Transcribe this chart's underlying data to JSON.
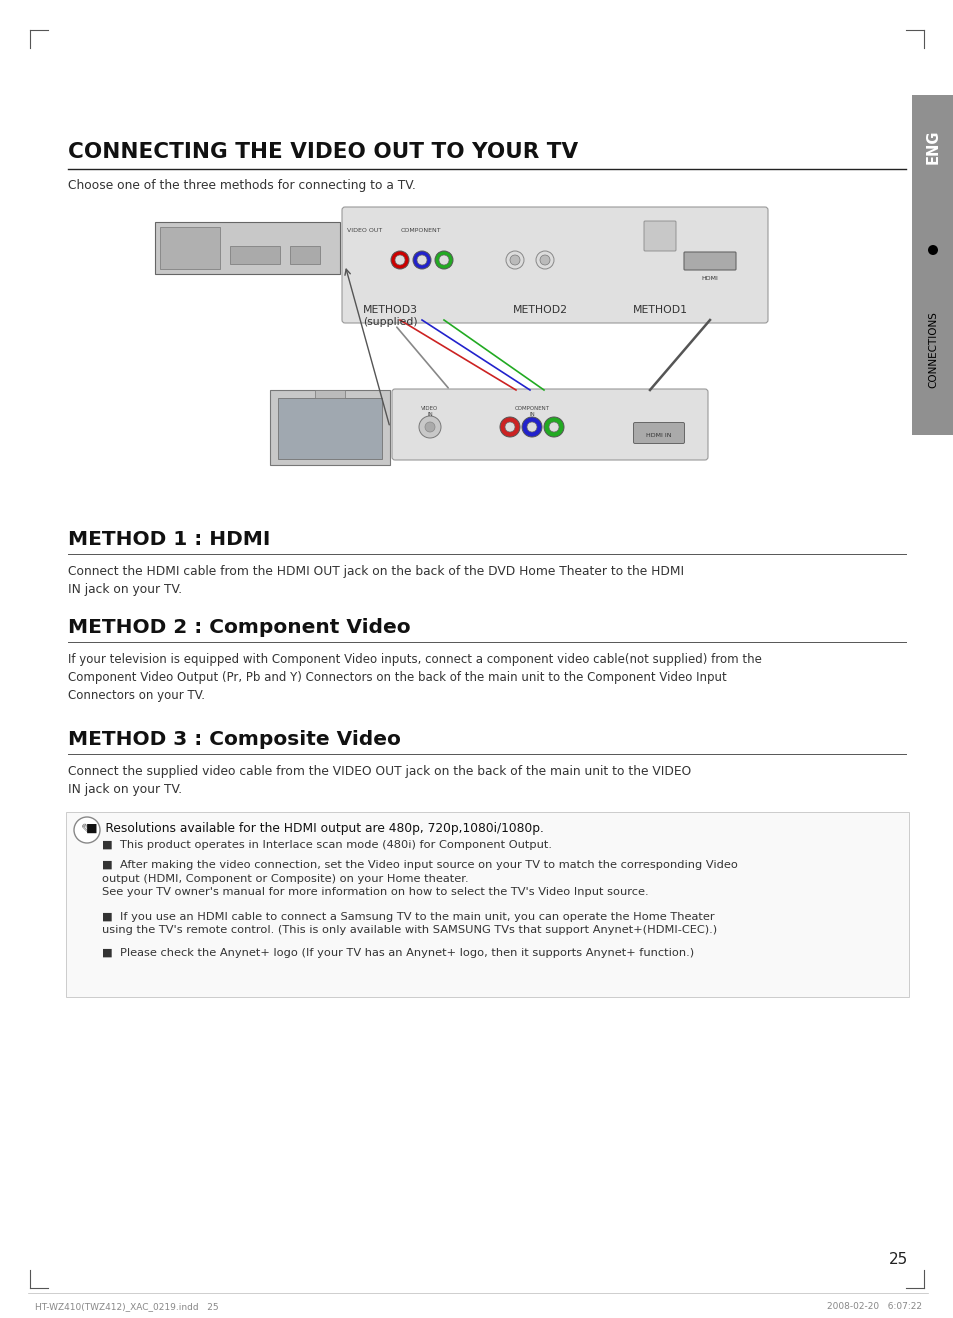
{
  "bg_color": "#ffffff",
  "title": "CONNECTING THE VIDEO OUT TO YOUR TV",
  "subtitle": "Choose one of the three methods for connecting to a TV.",
  "method1_title": "METHOD 1 : HDMI",
  "method1_text": "Connect the HDMI cable from the HDMI OUT jack on the back of the DVD Home Theater to the HDMI\nIN jack on your TV.",
  "method2_title": "METHOD 2 : Component Video",
  "method2_text": "If your television is equipped with Component Video inputs, connect a component video cable(not supplied) from the\nComponent Video Output (Pr, Pb and Y) Connectors on the back of the main unit to the Component Video Input\nConnectors on your TV.",
  "method3_title": "METHOD 3 : Composite Video",
  "method3_text": "Connect the supplied video cable from the VIDEO OUT jack on the back of the main unit to the VIDEO\nIN jack on your TV.",
  "note_main": "Resolutions available for the HDMI output are 480p, 720p,1080i/1080p.",
  "note_bullet1": "This product operates in Interlace scan mode (480i) for Component Output.",
  "note_bullet2": "After making the video connection, set the Video input source on your TV to match the corresponding Video\noutput (HDMI, Component or Composite) on your Home theater.\nSee your TV owner's manual for more information on how to select the TV's Video Input source.",
  "note_bullet3": "If you use an HDMI cable to connect a Samsung TV to the main unit, you can operate the Home Theater\nusing the TV's remote control. (This is only available with SAMSUNG TVs that support Anynet+(HDMI-CEC).)",
  "note_bullet4": "Please check the Anynet+ logo (If your TV has an Anynet+ logo, then it supports Anynet+ function.)",
  "page_number": "25",
  "tab_text": "ENG",
  "tab_subtext": "CONNECTIONS",
  "footer_left": "HT-WZ410(TWZ412)_XAC_0219.indd   25",
  "footer_right": "2008-02-20   6:07:22"
}
